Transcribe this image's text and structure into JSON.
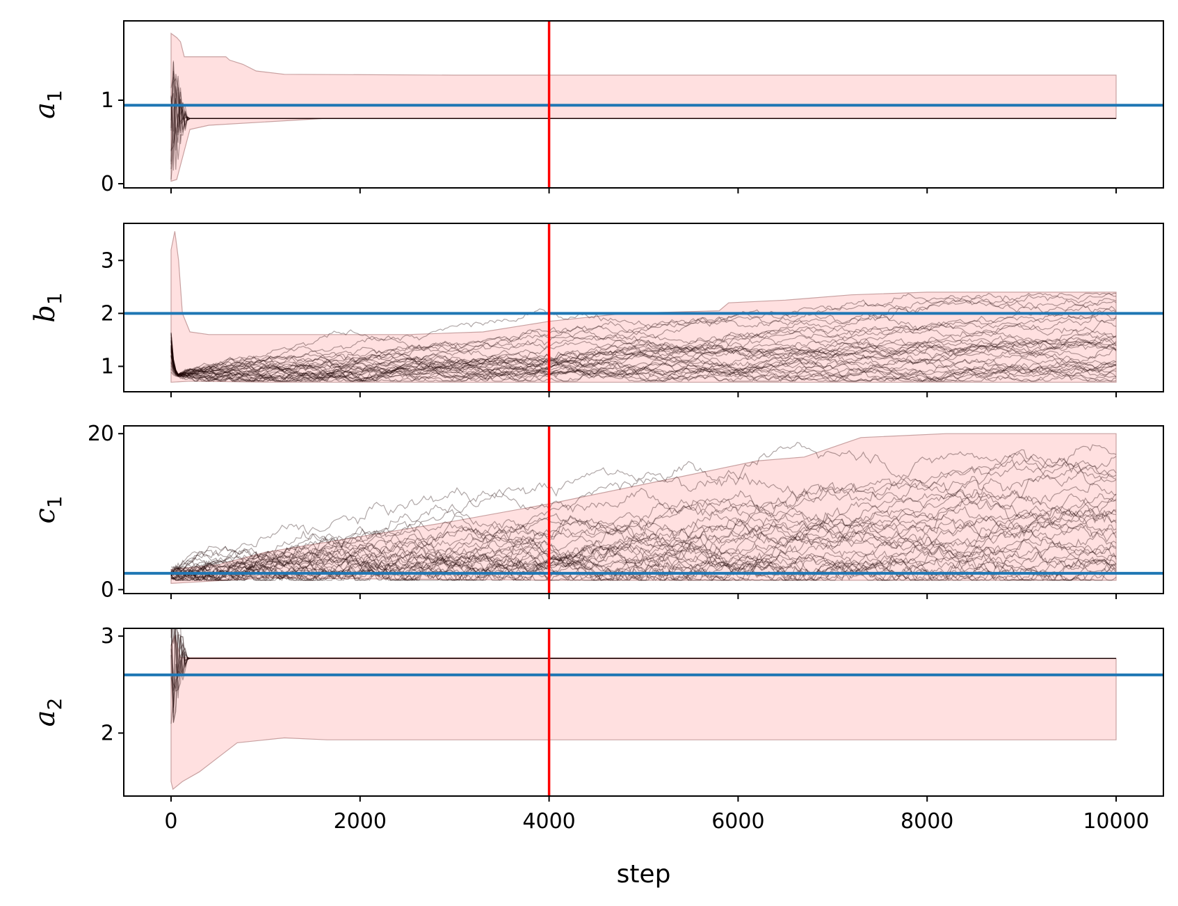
{
  "chart_data": {
    "type": "line",
    "description_kind": "mcmc-trace-plots",
    "xlabel": "step",
    "x_range": [
      -500,
      10500
    ],
    "x_ticks": [
      0,
      2000,
      4000,
      6000,
      8000,
      10000
    ],
    "x_tick_labels": [
      "0",
      "2000",
      "4000",
      "6000",
      "8000",
      "10000"
    ],
    "steps": 10000,
    "burn_in_step": 4000,
    "colors": {
      "walker": "#1a0000",
      "band_fill": "#ffe0e0",
      "band_edge": "#c8a0a0",
      "truth": "#1f77b4",
      "burn_in": "#ff0000"
    },
    "panels": [
      {
        "param": "a",
        "subscript": "1",
        "ylim": [
          -0.05,
          1.95
        ],
        "y_ticks": [
          0,
          1
        ],
        "y_tick_labels": [
          "0",
          "1"
        ],
        "true_value": 0.94,
        "band": {
          "low": 0.78,
          "high": 1.3
        },
        "walker_start": [
          0.03,
          1.8
        ],
        "walker_final": [
          0.78,
          0.78
        ]
      },
      {
        "param": "b",
        "subscript": "1",
        "ylim": [
          0.52,
          3.7
        ],
        "y_ticks": [
          1,
          2,
          3
        ],
        "y_tick_labels": [
          "1",
          "2",
          "3"
        ],
        "true_value": 2.0,
        "band": {
          "low": 0.7,
          "high": 2.4
        },
        "walker_start": [
          0.7,
          3.55
        ],
        "walker_final": [
          0.85,
          2.4
        ]
      },
      {
        "param": "c",
        "subscript": "1",
        "ylim": [
          -0.5,
          21.0
        ],
        "y_ticks": [
          0,
          20
        ],
        "y_tick_labels": [
          "0",
          "20"
        ],
        "true_value": 2.1,
        "band": {
          "low": 1.2,
          "high": 20.0
        },
        "walker_start": [
          0.8,
          2.6
        ],
        "walker_final": [
          1.5,
          19.5
        ]
      },
      {
        "param": "a",
        "subscript": "2",
        "ylim": [
          1.35,
          3.08
        ],
        "y_ticks": [
          2,
          3
        ],
        "y_tick_labels": [
          "2",
          "3"
        ],
        "true_value": 2.6,
        "band": {
          "low": 1.93,
          "high": 2.77
        },
        "walker_start": [
          1.42,
          3.0
        ],
        "walker_final": [
          2.77,
          2.77
        ]
      }
    ]
  }
}
